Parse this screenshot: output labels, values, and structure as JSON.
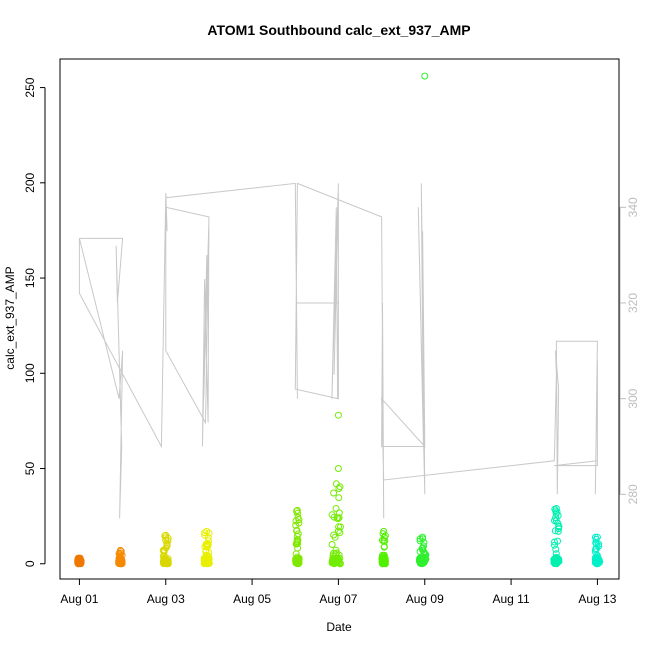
{
  "chart_data": {
    "type": "scatter",
    "title": "ATOM1 Southbound calc_ext_937_AMP",
    "xlabel": "Date",
    "ylabel": "calc_ext_937_AMP",
    "x_ticks": [
      {
        "day": 1,
        "label": "Aug 01"
      },
      {
        "day": 3,
        "label": "Aug 03"
      },
      {
        "day": 5,
        "label": "Aug 05"
      },
      {
        "day": 7,
        "label": "Aug 07"
      },
      {
        "day": 9,
        "label": "Aug 09"
      },
      {
        "day": 11,
        "label": "Aug 11"
      },
      {
        "day": 13,
        "label": "Aug 13"
      }
    ],
    "xlim_days": [
      0.55,
      13.5
    ],
    "ylim": [
      -8,
      265
    ],
    "y_ticks": [
      0,
      50,
      100,
      150,
      200,
      250
    ],
    "y2lim": [
      262.3,
      371
    ],
    "y2_ticks": [
      280,
      300,
      320,
      340
    ],
    "y2_color": "#bdbdbd",
    "scatter_clusters": [
      {
        "x": 1.0,
        "width": 0.08,
        "max": 2,
        "color": "#f07800"
      },
      {
        "x": 1.95,
        "width": 0.08,
        "max": 7,
        "color": "#f58a00"
      },
      {
        "x": 3.0,
        "width": 0.12,
        "max": 15,
        "color": "#d8d800"
      },
      {
        "x": 3.95,
        "width": 0.12,
        "max": 17,
        "color": "#e8f000"
      },
      {
        "x": 6.05,
        "width": 0.08,
        "max": 28,
        "color": "#80e800"
      },
      {
        "x": 6.95,
        "width": 0.2,
        "max": 42,
        "color": "#72ec00",
        "extra": [
          50,
          78
        ]
      },
      {
        "x": 8.05,
        "width": 0.08,
        "max": 17,
        "color": "#50f000"
      },
      {
        "x": 8.95,
        "width": 0.15,
        "max": 14,
        "color": "#30f030",
        "extra": [
          256
        ]
      },
      {
        "x": 12.05,
        "width": 0.12,
        "max": 29,
        "color": "#00f0b0"
      },
      {
        "x": 13.0,
        "width": 0.1,
        "max": 14,
        "color": "#00f0c8"
      }
    ],
    "y2_series_path": [
      [
        1.0,
        333.5
      ],
      [
        2.0,
        333.5
      ],
      [
        1.88,
        320
      ],
      [
        1.85,
        332
      ],
      [
        1.98,
        290
      ],
      [
        1.93,
        275
      ],
      [
        2.0,
        310
      ],
      [
        1.92,
        300
      ],
      [
        1.0,
        333.5
      ],
      [
        1.0,
        322
      ],
      [
        2.9,
        290
      ],
      [
        3.0,
        343
      ],
      [
        3.03,
        335
      ],
      [
        3.0,
        340
      ],
      [
        4.0,
        338
      ],
      [
        3.98,
        295
      ],
      [
        3.9,
        325
      ],
      [
        3.85,
        290
      ],
      [
        3.95,
        330
      ],
      [
        3.88,
        300
      ],
      [
        4.0,
        337
      ],
      [
        3.92,
        295
      ],
      [
        3.0,
        310
      ],
      [
        3.0,
        342
      ],
      [
        6.0,
        345
      ],
      [
        6.05,
        300
      ],
      [
        6.02,
        330
      ],
      [
        6.03,
        320
      ],
      [
        7.0,
        320
      ],
      [
        6.98,
        300
      ],
      [
        6.95,
        340
      ],
      [
        6.85,
        300
      ],
      [
        7.0,
        345
      ],
      [
        6.9,
        305
      ],
      [
        7.0,
        343
      ],
      [
        7.0,
        300
      ],
      [
        6.0,
        302
      ],
      [
        6.05,
        345
      ],
      [
        8.0,
        338
      ],
      [
        8.05,
        275
      ],
      [
        8.02,
        320
      ],
      [
        8.0,
        290
      ],
      [
        9.0,
        290
      ],
      [
        8.92,
        345
      ],
      [
        8.97,
        290
      ],
      [
        8.85,
        340
      ],
      [
        9.0,
        280
      ],
      [
        8.95,
        335
      ],
      [
        9.0,
        290
      ],
      [
        8.0,
        300
      ],
      [
        8.05,
        283
      ],
      [
        12.0,
        287
      ],
      [
        12.05,
        305
      ],
      [
        12.03,
        310
      ],
      [
        12.1,
        302
      ],
      [
        12.07,
        280
      ],
      [
        12.05,
        312
      ],
      [
        13.0,
        312
      ],
      [
        12.95,
        280
      ],
      [
        13.0,
        308
      ],
      [
        13.0,
        286
      ],
      [
        12.0,
        286
      ],
      [
        13.0,
        287
      ]
    ]
  }
}
